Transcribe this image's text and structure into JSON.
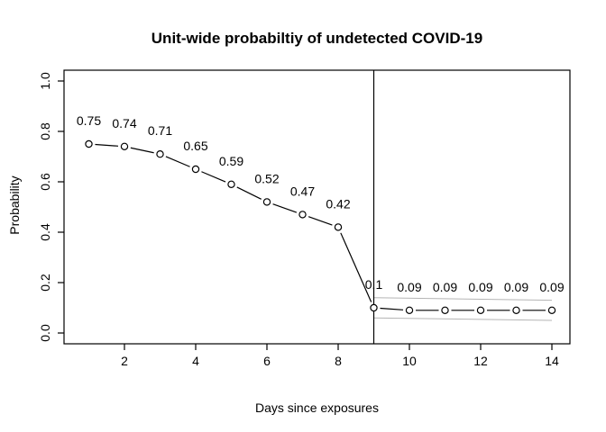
{
  "figure": {
    "kind": "R base-graphics line plot"
  },
  "chart_data": {
    "type": "line",
    "title": "Unit-wide probabiltiy of undetected COVID-19",
    "xlabel": "Days since exposures",
    "ylabel": "Probability",
    "x": [
      1,
      2,
      3,
      4,
      5,
      6,
      7,
      8,
      9,
      10,
      11,
      12,
      13,
      14
    ],
    "series": [
      {
        "name": "unit-wide-probability-undetected",
        "values": [
          0.75,
          0.74,
          0.71,
          0.65,
          0.59,
          0.52,
          0.47,
          0.42,
          0.1,
          0.09,
          0.09,
          0.09,
          0.09,
          0.09
        ],
        "point_labels": [
          "0.75",
          "0.74",
          "0.71",
          "0.65",
          "0.59",
          "0.52",
          "0.47",
          "0.42",
          "0.1",
          "0.09",
          "0.09",
          "0.09",
          "0.09",
          "0.09"
        ],
        "marker": "open-circle",
        "line_style": "segments-with-gaps-at-points"
      }
    ],
    "annotations": {
      "vline_x": 9,
      "ci_band": {
        "x_range": [
          9,
          14
        ],
        "upper": [
          0.14,
          0.13
        ],
        "lower": [
          0.06,
          0.05
        ]
      }
    },
    "x_ticks": [
      2,
      4,
      6,
      8,
      10,
      12,
      14
    ],
    "y_tick_labels": [
      "0.0",
      "0.2",
      "0.4",
      "0.6",
      "0.8",
      "1.0"
    ],
    "xlim": [
      1,
      14
    ],
    "ylim": [
      0,
      1
    ],
    "grid": false,
    "legend_position": "none",
    "colors": {
      "line": "#000000",
      "marker_stroke": "#000000",
      "marker_fill": "#ffffff",
      "band": "#b4b4b4",
      "axis": "#000000",
      "text": "#000000",
      "background": "#ffffff"
    }
  }
}
